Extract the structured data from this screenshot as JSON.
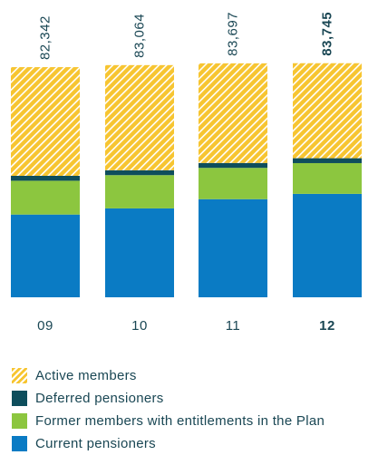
{
  "chart_data": {
    "type": "bar",
    "stacked": true,
    "categories": [
      "09",
      "10",
      "11",
      "12"
    ],
    "highlight_category": "12",
    "totals": [
      "82,342",
      "83,064",
      "83,697",
      "83,745"
    ],
    "series": [
      {
        "name": "Current pensioners",
        "color": "#0a7bc4",
        "pattern": "solid",
        "values": [
          29600,
          31800,
          35100,
          37000
        ]
      },
      {
        "name": "Former members with entitlements in the Plan",
        "color": "#8cc63f",
        "pattern": "solid",
        "values": [
          12100,
          11900,
          11200,
          11000
        ]
      },
      {
        "name": "Deferred pensioners",
        "color": "#0e4e5c",
        "pattern": "solid",
        "values": [
          1750,
          1750,
          1750,
          1750
        ]
      },
      {
        "name": "Active members",
        "color": "#f7c531",
        "pattern": "hatched",
        "values": [
          38892,
          37614,
          35647,
          33995
        ]
      }
    ],
    "legend_order": [
      "Active members",
      "Deferred pensioners",
      "Former members with entitlements in the Plan",
      "Current pensioners"
    ],
    "legend_position": "bottom",
    "grid": false,
    "axis_lines": false,
    "label_color": "#1a4754"
  }
}
